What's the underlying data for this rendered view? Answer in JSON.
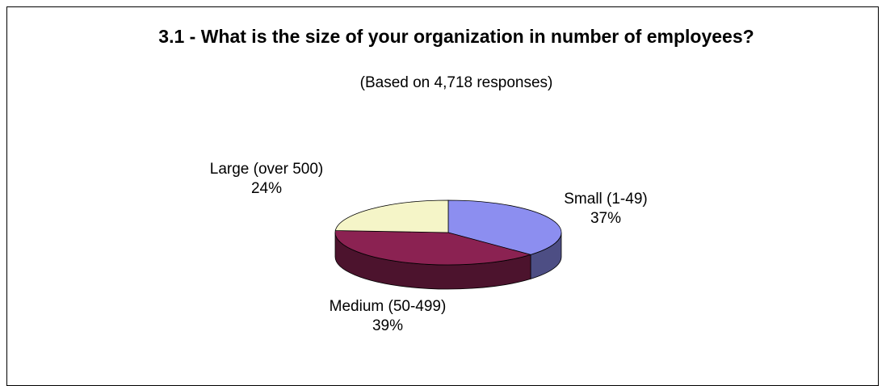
{
  "chart_data": {
    "type": "pie",
    "title": "3.1 - What is the size of your organization in number of employees?",
    "subtitle": "(Based on 4,718 responses)",
    "categories": [
      "Small (1-49)",
      "Medium (50-499)",
      "Large (over 500)"
    ],
    "values": [
      37,
      39,
      24
    ],
    "value_labels": [
      "37%",
      "39%",
      "24%"
    ],
    "colors": [
      "#8c8ef0",
      "#8b2252",
      "#f5f5c8"
    ]
  }
}
